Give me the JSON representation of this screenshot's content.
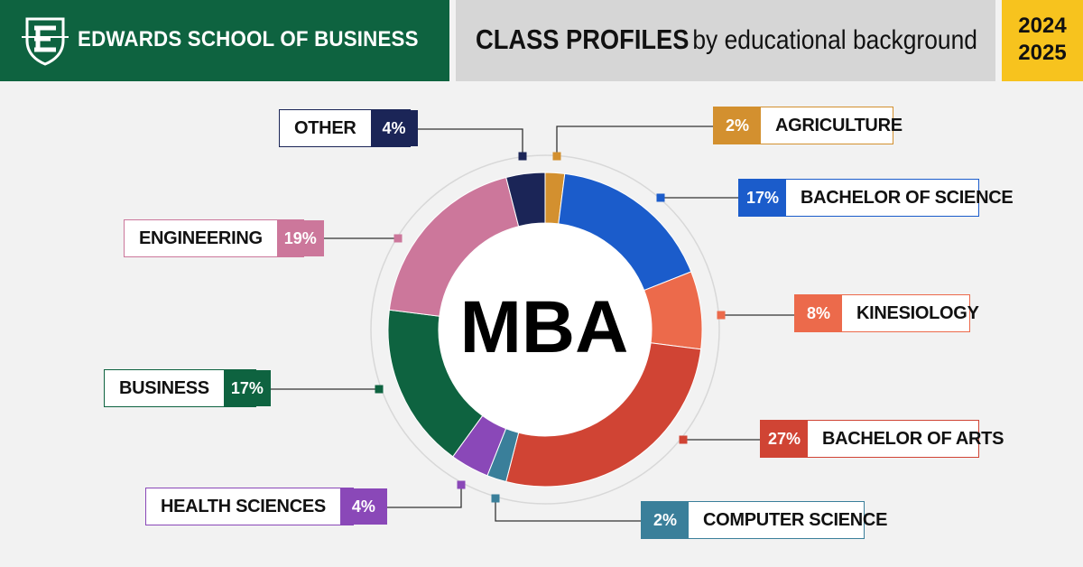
{
  "header": {
    "brand": "EDWARDS SCHOOL OF BUSINESS",
    "title_main": "CLASS PROFILES",
    "title_sub": "by educational background",
    "year_1": "2024",
    "year_2": "2025",
    "logo_icon": "edwards-e-shield-logo-icon"
  },
  "colors": {
    "brand_green": "#0e6340",
    "title_gray": "#d6d6d6",
    "year_gold": "#f7c31e"
  },
  "chart_data": {
    "type": "pie",
    "variant": "donut",
    "center_label": "MBA",
    "slices": [
      {
        "label": "AGRICULTURE",
        "value": 2,
        "pct_label": "2%",
        "color": "#d3902f"
      },
      {
        "label": "BACHELOR OF SCIENCE",
        "value": 17,
        "pct_label": "17%",
        "color": "#1b5ccb"
      },
      {
        "label": "KINESIOLOGY",
        "value": 8,
        "pct_label": "8%",
        "color": "#ec6a4b"
      },
      {
        "label": "BACHELOR OF ARTS",
        "value": 27,
        "pct_label": "27%",
        "color": "#d04434"
      },
      {
        "label": "COMPUTER SCIENCE",
        "value": 2,
        "pct_label": "2%",
        "color": "#3a7f9a"
      },
      {
        "label": "HEALTH SCIENCES",
        "value": 4,
        "pct_label": "4%",
        "color": "#8a48b8"
      },
      {
        "label": "BUSINESS",
        "value": 17,
        "pct_label": "17%",
        "color": "#0e6340"
      },
      {
        "label": "ENGINEERING",
        "value": 19,
        "pct_label": "19%",
        "color": "#cc779b"
      },
      {
        "label": "OTHER",
        "value": 4,
        "pct_label": "4%",
        "color": "#1b2557"
      }
    ]
  }
}
